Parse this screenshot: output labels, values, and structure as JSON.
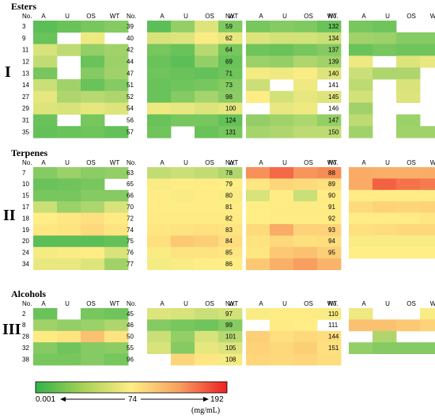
{
  "chart_data": {
    "type": "heatmap",
    "columns": [
      "A",
      "U",
      "OS",
      "WT"
    ],
    "row_header": "No.",
    "colorscale": {
      "min": 0.001,
      "mid": 74,
      "max": 192,
      "min_label": "0.001",
      "mid_label": "74",
      "max_label": "192",
      "unit": "(mg/mL)",
      "colors": [
        "#32b24a",
        "#ffee86",
        "#ee2024"
      ]
    },
    "groups": [
      {
        "roman": "I",
        "title": "Esters",
        "panels": [
          {
            "rows": [
              {
                "no": "3",
                "v": [
                  15,
                  20,
                  25,
                  30
                ]
              },
              {
                "no": "9",
                "v": [
                  20,
                  null,
                  68,
                  null
                ]
              },
              {
                "no": "11",
                "v": [
                  60,
                  50,
                  35,
                  40
                ]
              },
              {
                "no": "12",
                "v": [
                  52,
                  null,
                  20,
                  38
                ]
              },
              {
                "no": "13",
                "v": [
                  25,
                  null,
                  30,
                  40
                ]
              },
              {
                "no": "14",
                "v": [
                  55,
                  40,
                  20,
                  30
                ]
              },
              {
                "no": "27",
                "v": [
                  65,
                  45,
                  48,
                  45
                ]
              },
              {
                "no": "29",
                "v": [
                  62,
                  60,
                  65,
                  62
                ]
              },
              {
                "no": "31",
                "v": [
                  20,
                  null,
                  25,
                  null
                ]
              },
              {
                "no": "35",
                "v": [
                  18,
                  20,
                  22,
                  18
                ]
              }
            ]
          },
          {
            "rows": [
              {
                "no": "39",
                "v": [
                  15,
                  35,
                  62,
                  28
                ]
              },
              {
                "no": "40",
                "v": [
                  60,
                  62,
                  72,
                  66
                ]
              },
              {
                "no": "42",
                "v": [
                  25,
                  20,
                  48,
                  25
                ]
              },
              {
                "no": "44",
                "v": [
                  20,
                  15,
                  35,
                  20
                ]
              },
              {
                "no": "47",
                "v": [
                  22,
                  20,
                  18,
                  22
                ]
              },
              {
                "no": "51",
                "v": [
                  20,
                  22,
                  25,
                  30
                ]
              },
              {
                "no": "52",
                "v": [
                  20,
                  30,
                  42,
                  32
                ]
              },
              {
                "no": "54",
                "v": [
                  68,
                  66,
                  62,
                  65
                ]
              },
              {
                "no": "56",
                "v": [
                  20,
                  25,
                  25,
                  18
                ]
              },
              {
                "no": "57",
                "v": [
                  22,
                  null,
                  20,
                  25
                ]
              }
            ]
          },
          {
            "rows": [
              {
                "no": "59",
                "v": [
                  25,
                  30,
                  28,
                  20
                ]
              },
              {
                "no": "62",
                "v": [
                  62,
                  58,
                  58,
                  55
                ]
              },
              {
                "no": "64",
                "v": [
                  22,
                  20,
                  25,
                  30
                ]
              },
              {
                "no": "69",
                "v": [
                  38,
                  35,
                  45,
                  40
                ]
              },
              {
                "no": "71",
                "v": [
                  70,
                  68,
                  72,
                  62
                ]
              },
              {
                "no": "73",
                "v": [
                  55,
                  null,
                  68,
                  null
                ]
              },
              {
                "no": "98",
                "v": [
                  75,
                  58,
                  65,
                  62
                ]
              },
              {
                "no": "100",
                "v": [
                  null,
                  66,
                  68,
                  null
                ]
              },
              {
                "no": "124",
                "v": [
                  35,
                  40,
                  44,
                  35
                ]
              },
              {
                "no": "131",
                "v": [
                  42,
                  45,
                  50,
                  50
                ]
              }
            ]
          },
          {
            "rows": [
              {
                "no": "132",
                "v": [
                  25,
                  22,
                  null,
                  null
                ]
              },
              {
                "no": "134",
                "v": [
                  40,
                  38,
                  30,
                  30
                ]
              },
              {
                "no": "137",
                "v": [
                  20,
                  25,
                  22,
                  22
                ]
              },
              {
                "no": "139",
                "v": [
                  68,
                  null,
                  62,
                  66
                ]
              },
              {
                "no": "140",
                "v": [
                  55,
                  45,
                  45,
                  null
                ]
              },
              {
                "no": "141",
                "v": [
                  50,
                  null,
                  60,
                  null
                ]
              },
              {
                "no": "145",
                "v": [
                  58,
                  null,
                  62,
                  null
                ]
              },
              {
                "no": "146",
                "v": [
                  40,
                  null,
                  null,
                  null
                ]
              },
              {
                "no": "147",
                "v": [
                  50,
                  null,
                  38,
                  null
                ]
              },
              {
                "no": "150",
                "v": [
                  40,
                  null,
                  40,
                  40
                ]
              }
            ]
          }
        ]
      },
      {
        "roman": "II",
        "title": "Terpenes",
        "panels": [
          {
            "rows": [
              {
                "no": "7",
                "v": [
                  30,
                  38,
                  32,
                  35
                ]
              },
              {
                "no": "10",
                "v": [
                  20,
                  22,
                  25,
                  null
                ]
              },
              {
                "no": "15",
                "v": [
                  25,
                  25,
                  30,
                  30
                ]
              },
              {
                "no": "17",
                "v": [
                  55,
                  38,
                  44,
                  60
                ]
              },
              {
                "no": "18",
                "v": [
                  74,
                  78,
                  82,
                  76
                ]
              },
              {
                "no": "19",
                "v": [
                  78,
                  80,
                  86,
                  80
                ]
              },
              {
                "no": "20",
                "v": [
                  15,
                  15,
                  15,
                  18
                ]
              },
              {
                "no": "24",
                "v": [
                  70,
                  72,
                  75,
                  60
                ]
              },
              {
                "no": "34",
                "v": [
                  66,
                  66,
                  62,
                  40
                ]
              }
            ]
          },
          {
            "rows": [
              {
                "no": "63",
                "v": [
                  52,
                  55,
                  52,
                  45
                ]
              },
              {
                "no": "65",
                "v": [
                  72,
                  75,
                  76,
                  74
                ]
              },
              {
                "no": "66",
                "v": [
                  75,
                  72,
                  75,
                  72
                ]
              },
              {
                "no": "70",
                "v": [
                  75,
                  75,
                  75,
                  75
                ]
              },
              {
                "no": "72",
                "v": [
                  76,
                  76,
                  76,
                  76
                ]
              },
              {
                "no": "74",
                "v": [
                  78,
                  80,
                  82,
                  80
                ]
              },
              {
                "no": "75",
                "v": [
                  82,
                  96,
                  92,
                  84
                ]
              },
              {
                "no": "76",
                "v": [
                  72,
                  80,
                  80,
                  78
                ]
              },
              {
                "no": "77",
                "v": [
                  70,
                  72,
                  74,
                  74
                ]
              }
            ]
          },
          {
            "rows": [
              {
                "no": "78",
                "v": [
                  128,
                  150,
                  125,
                  130
                ]
              },
              {
                "no": "79",
                "v": [
                  78,
                  88,
                  85,
                  82
                ]
              },
              {
                "no": "80",
                "v": [
                  60,
                  75,
                  55,
                  75
                ]
              },
              {
                "no": "81",
                "v": [
                  74,
                  76,
                  76,
                  76
                ]
              },
              {
                "no": "82",
                "v": [
                  74,
                  76,
                  76,
                  76
                ]
              },
              {
                "no": "83",
                "v": [
                  85,
                  112,
                  90,
                  90
                ]
              },
              {
                "no": "84",
                "v": [
                  80,
                  86,
                  82,
                  84
                ]
              },
              {
                "no": "85",
                "v": [
                  78,
                  96,
                  100,
                  92
                ]
              },
              {
                "no": "86",
                "v": [
                  96,
                  110,
                  120,
                  108
                ]
              }
            ]
          },
          {
            "rows": [
              {
                "no": "88",
                "v": [
                  112,
                  110,
                  110,
                  112
                ]
              },
              {
                "no": "89",
                "v": [
                  112,
                  155,
                  145,
                  140
                ]
              },
              {
                "no": "90",
                "v": [
                  75,
                  75,
                  75,
                  75
                ]
              },
              {
                "no": "91",
                "v": [
                  85,
                  90,
                  88,
                  90
                ]
              },
              {
                "no": "92",
                "v": [
                  75,
                  75,
                  75,
                  78
                ]
              },
              {
                "no": "93",
                "v": [
                  82,
                  84,
                  86,
                  86
                ]
              },
              {
                "no": "94",
                "v": [
                  72,
                  72,
                  72,
                  72
                ]
              },
              {
                "no": "95",
                "v": [
                  74,
                  74,
                  74,
                  74
                ]
              }
            ]
          }
        ]
      },
      {
        "roman": "III",
        "title": "Alcohols",
        "panels": [
          {
            "rows": [
              {
                "no": "2",
                "v": [
                  20,
                  null,
                  25,
                  22
                ]
              },
              {
                "no": "8",
                "v": [
                  40,
                  35,
                  38,
                  45
                ]
              },
              {
                "no": "28",
                "v": [
                  76,
                  80,
                  100,
                  80
                ]
              },
              {
                "no": "32",
                "v": [
                  30,
                  22,
                  30,
                  32
                ]
              },
              {
                "no": "38",
                "v": [
                  25,
                  25,
                  30,
                  25
                ]
              }
            ]
          },
          {
            "rows": [
              {
                "no": "45",
                "v": [
                  62,
                  60,
                  55,
                  58
                ]
              },
              {
                "no": "46",
                "v": [
                  30,
                  25,
                  22,
                  30
                ]
              },
              {
                "no": "50",
                "v": [
                  55,
                  35,
                  60,
                  48
                ]
              },
              {
                "no": "55",
                "v": [
                  60,
                  30,
                  65,
                  62
                ]
              },
              {
                "no": "96",
                "v": [
                  null,
                  88,
                  78,
                  70
                ]
              }
            ]
          },
          {
            "rows": [
              {
                "no": "97",
                "v": [
                  72,
                  75,
                  76,
                  72
                ]
              },
              {
                "no": "99",
                "v": [
                  null,
                  76,
                  74,
                  null
                ]
              },
              {
                "no": "101",
                "v": [
                  92,
                  82,
                  86,
                  84
                ]
              },
              {
                "no": "105",
                "v": [
                  90,
                  86,
                  92,
                  82
                ]
              },
              {
                "no": "108",
                "v": [
                  88,
                  86,
                  88,
                  84
                ]
              }
            ]
          },
          {
            "rows": [
              {
                "no": "110",
                "v": [
                  68,
                  null,
                  null,
                  72
                ]
              },
              {
                "no": "111",
                "v": [
                  100,
                  100,
                  96,
                  90
                ]
              },
              {
                "no": "144",
                "v": [
                  null,
                  45,
                  null,
                  null
                ]
              },
              {
                "no": "151",
                "v": [
                  35,
                  30,
                  30,
                  30
                ]
              }
            ]
          }
        ]
      }
    ]
  }
}
